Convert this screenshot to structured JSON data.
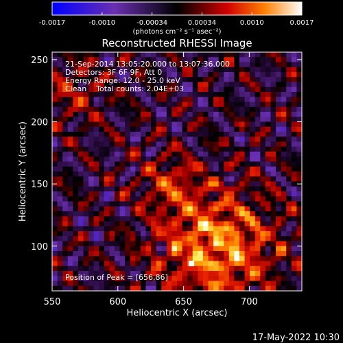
{
  "chart_data": {
    "type": "heatmap",
    "title": "Reconstructed RHESSI Image",
    "xlabel": "Heliocentric X (arcsec)",
    "ylabel": "Heliocentric Y (arcsec)",
    "xlim": [
      550,
      740
    ],
    "ylim": [
      64,
      256
    ],
    "xticks": [
      550,
      600,
      650,
      700
    ],
    "yticks": [
      100,
      150,
      200,
      250
    ],
    "colorbar": {
      "ticks": [
        "-0.0017",
        "-0.0010",
        "-0.00034",
        "0.00034",
        "0.0010",
        "0.0017"
      ],
      "unit_label": "(photons cm⁻² s⁻¹ asec⁻²)",
      "range": [
        -0.0017,
        0.0017
      ],
      "colors": [
        "#0000ff",
        "#6a30b0",
        "#000000",
        "#d00000",
        "#ff8000",
        "#ffffff"
      ]
    },
    "annotations": [
      "21-Sep-2014 13:05:20.000 to 13:07:36.000",
      "Detectors: 3F 6F 9F, Att 0",
      "Energy Range: 12.0 - 25.0 keV",
      "Clean    Total counts: 2.04E+03"
    ],
    "peak_label": "Position of Peak = [656,86]",
    "peak": [
      656,
      86
    ],
    "grid": false
  },
  "footer": {
    "date": "17-May-2022 10:30"
  }
}
